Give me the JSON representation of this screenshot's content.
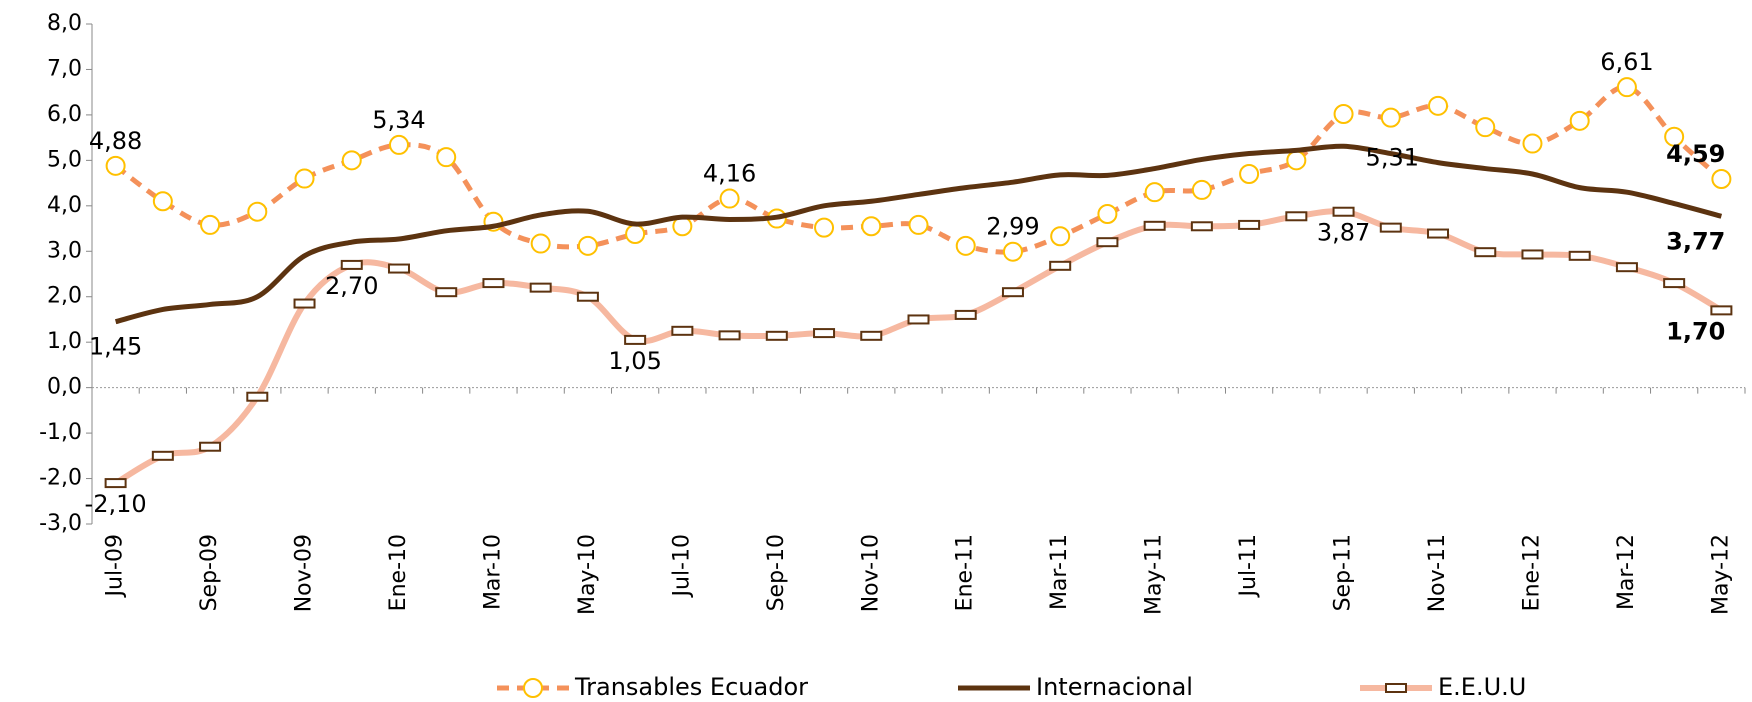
{
  "chart_data": {
    "type": "line",
    "categories": [
      "Jul-09",
      null,
      "Sep-09",
      null,
      "Nov-09",
      null,
      "Ene-10",
      null,
      "Mar-10",
      null,
      "May-10",
      null,
      "Jul-10",
      null,
      "Sep-10",
      null,
      "Nov-10",
      null,
      "Ene-11",
      null,
      "Mar-11",
      null,
      "May-11",
      null,
      "Jul-11",
      null,
      "Sep-11",
      null,
      "Nov-11",
      null,
      "Ene-12",
      null,
      "Mar-12",
      null,
      "May-12"
    ],
    "ylim": [
      -3,
      8
    ],
    "yticks": [
      {
        "value": -3,
        "label": "-3,0"
      },
      {
        "value": -2,
        "label": "-2,0"
      },
      {
        "value": -1,
        "label": "-1,0"
      },
      {
        "value": 0,
        "label": "0,0"
      },
      {
        "value": 1,
        "label": "1,0"
      },
      {
        "value": 2,
        "label": "2,0"
      },
      {
        "value": 3,
        "label": "3,0"
      },
      {
        "value": 4,
        "label": "4,0"
      },
      {
        "value": 5,
        "label": "5,0"
      },
      {
        "value": 6,
        "label": "6,0"
      },
      {
        "value": 7,
        "label": "7,0"
      },
      {
        "value": 8,
        "label": "8,0"
      }
    ],
    "legend": "bottom",
    "series": [
      {
        "name": "Transables Ecuador",
        "color": "#f4915a",
        "values": [
          4.88,
          4.1,
          3.58,
          3.87,
          4.6,
          5.0,
          5.34,
          5.07,
          3.65,
          3.17,
          3.12,
          3.38,
          3.55,
          4.16,
          3.72,
          3.52,
          3.55,
          3.58,
          3.12,
          2.99,
          3.33,
          3.82,
          4.3,
          4.35,
          4.7,
          5.0,
          6.02,
          5.94,
          6.2,
          5.73,
          5.37,
          5.87,
          6.61,
          5.52,
          4.59
        ],
        "value_labels": [
          "4,88",
          null,
          null,
          null,
          null,
          null,
          "5,34",
          null,
          null,
          null,
          null,
          null,
          null,
          "4,16",
          null,
          null,
          null,
          null,
          null,
          "2,99",
          null,
          null,
          null,
          null,
          null,
          null,
          null,
          null,
          null,
          null,
          null,
          null,
          "6,61",
          null,
          "4,59"
        ]
      },
      {
        "name": "Internacional",
        "color": "#5c3310",
        "values": [
          1.45,
          1.72,
          1.83,
          2.0,
          2.9,
          3.2,
          3.27,
          3.45,
          3.55,
          3.8,
          3.88,
          3.6,
          3.75,
          3.7,
          3.75,
          4.0,
          4.1,
          4.25,
          4.4,
          4.52,
          4.68,
          4.67,
          4.82,
          5.02,
          5.15,
          5.22,
          5.31,
          5.15,
          4.95,
          4.82,
          4.7,
          4.4,
          4.3,
          4.05,
          3.77
        ],
        "value_labels": [
          "1,45",
          null,
          null,
          null,
          null,
          null,
          null,
          null,
          null,
          null,
          null,
          null,
          null,
          null,
          null,
          null,
          null,
          null,
          null,
          null,
          null,
          null,
          null,
          null,
          null,
          null,
          "5,31",
          null,
          null,
          null,
          null,
          null,
          null,
          null,
          "3,77"
        ]
      },
      {
        "name": "E.E.U.U",
        "color": "#f6b8a0",
        "values": [
          -2.1,
          -1.5,
          -1.3,
          -0.2,
          1.85,
          2.7,
          2.62,
          2.1,
          2.3,
          2.2,
          2.0,
          1.05,
          1.25,
          1.15,
          1.14,
          1.2,
          1.14,
          1.5,
          1.6,
          2.1,
          2.68,
          3.2,
          3.56,
          3.55,
          3.58,
          3.77,
          3.87,
          3.52,
          3.39,
          2.98,
          2.93,
          2.9,
          2.65,
          2.3,
          1.7
        ],
        "value_labels": [
          "-2,10",
          null,
          null,
          null,
          null,
          "2,70",
          null,
          null,
          null,
          null,
          null,
          "1,05",
          null,
          null,
          null,
          null,
          null,
          null,
          null,
          null,
          null,
          null,
          null,
          null,
          null,
          null,
          "3,87",
          null,
          null,
          null,
          null,
          null,
          null,
          null,
          "1,70"
        ]
      }
    ]
  }
}
